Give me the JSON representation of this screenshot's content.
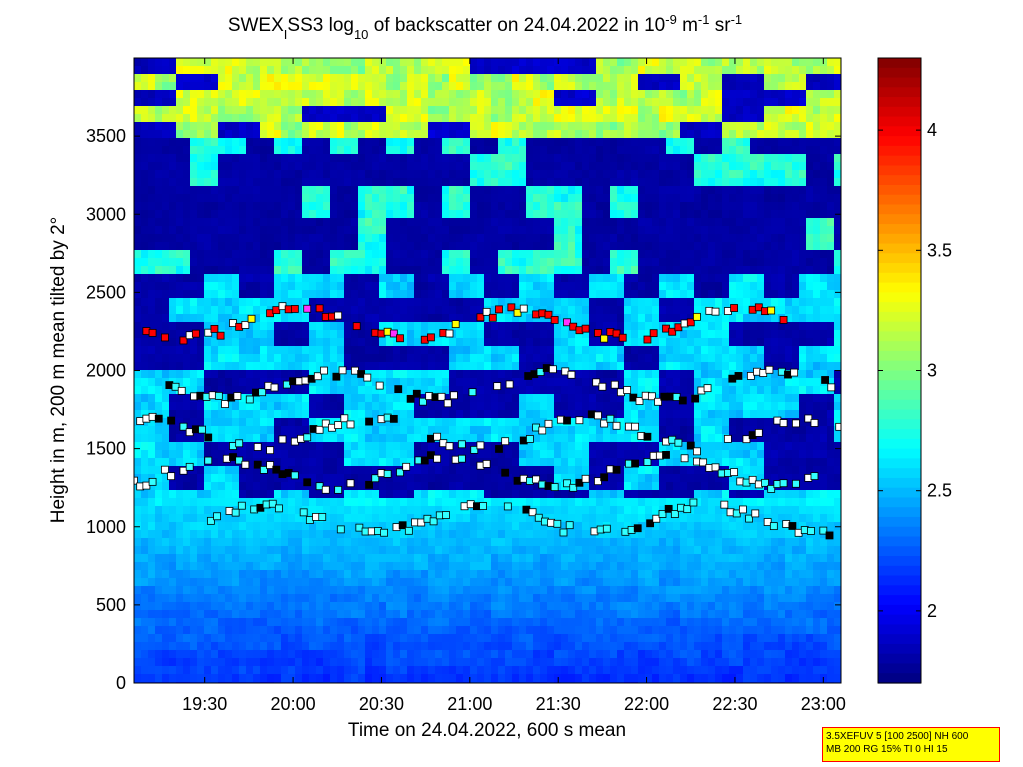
{
  "chart_data": {
    "type": "heatmap",
    "title": {
      "prefix": "SWEX",
      "sub1": "I",
      "mid": "SS3 log",
      "sub2": "10",
      "suffix1": " of backscatter on 24.04.2022 in 10",
      "sup1": "-9",
      "suffix2": " m",
      "sup2": "-1",
      "suffix3": " sr",
      "sup3": "-1"
    },
    "xlabel": "Time on 24.04.2022, 600 s mean",
    "ylabel": "Height in m, 200 m mean tilted by 2°",
    "x_ticks": [
      "19:30",
      "20:00",
      "20:30",
      "21:00",
      "21:30",
      "22:00",
      "22:30",
      "23:00"
    ],
    "x_tick_hours": [
      19.5,
      20.0,
      20.5,
      21.0,
      21.5,
      22.0,
      22.5,
      23.0
    ],
    "xlim_hours": [
      19.1,
      23.1
    ],
    "y_ticks": [
      0,
      500,
      1000,
      1500,
      2000,
      2500,
      3000,
      3500
    ],
    "ylim": [
      0,
      4000
    ],
    "colorbar": {
      "ticks": [
        "2",
        "2.5",
        "3",
        "3.5",
        "4"
      ],
      "tick_values": [
        2,
        2.5,
        3,
        3.5,
        4
      ],
      "range": [
        1.7,
        4.3
      ],
      "colormap": "jet"
    },
    "layers": [
      {
        "height": 1600,
        "from_hours": 19.1,
        "to_hours": 23.1
      },
      {
        "height": 1900,
        "from_hours": 19.3,
        "to_hours": 23.1
      },
      {
        "height": 2300,
        "from_hours": 19.1,
        "to_hours": 22.8
      },
      {
        "height": 1050,
        "from_hours": 19.5,
        "to_hours": 23.1
      },
      {
        "height": 1350,
        "from_hours": 19.1,
        "to_hours": 23.1
      }
    ],
    "marker_colors": {
      "low": "#33ffff",
      "mid": "#ffffff",
      "mid2": "#000000",
      "high": "#ff0000",
      "high2": "#ffff00",
      "rare": "#ff33ff"
    }
  },
  "info_box": {
    "line1": "3.5XEFUV 5 [100 2500] NH 600",
    "line2": "MB 200 RG 15% TI 0 HI 15"
  }
}
